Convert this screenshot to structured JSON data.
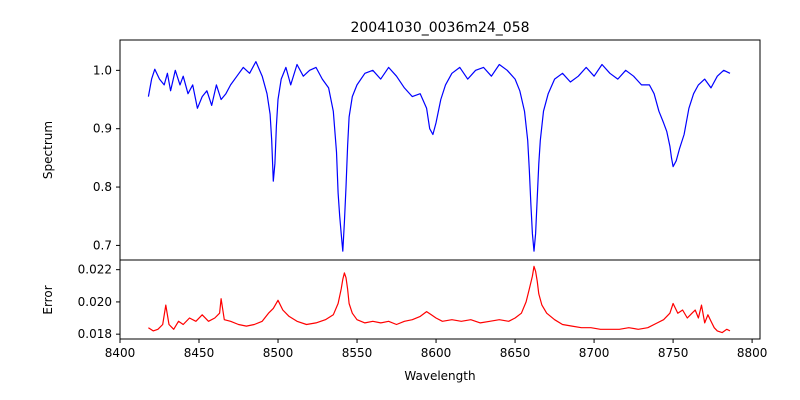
{
  "chart_data": [
    {
      "panel": "top",
      "type": "line",
      "title": "20041030_0036m24_058",
      "xlabel": "",
      "ylabel": "Spectrum",
      "xlim": [
        8400,
        8805
      ],
      "ylim": [
        0.675,
        1.052
      ],
      "xticks": [],
      "yticks": [
        0.7,
        0.8,
        0.9,
        1.0
      ],
      "ytick_labels": [
        "0.7",
        "0.8",
        "0.9",
        "1.0"
      ],
      "color": "#0000ff",
      "series": [
        {
          "x": [
            8418,
            8420,
            8422,
            8425,
            8428,
            8430,
            8432,
            8435,
            8438,
            8440,
            8443,
            8446,
            8449,
            8452,
            8455,
            8458,
            8461,
            8464,
            8467,
            8470,
            8474,
            8478,
            8482,
            8486,
            8490,
            8493,
            8495,
            8496,
            8497,
            8498,
            8499,
            8500,
            8502,
            8505,
            8508,
            8512,
            8516,
            8520,
            8524,
            8528,
            8532,
            8535,
            8537,
            8538,
            8539,
            8540,
            8541,
            8542,
            8543,
            8544,
            8545,
            8547,
            8550,
            8555,
            8560,
            8565,
            8570,
            8575,
            8580,
            8585,
            8590,
            8594,
            8596,
            8598,
            8600,
            8603,
            8606,
            8610,
            8615,
            8620,
            8625,
            8630,
            8635,
            8640,
            8645,
            8650,
            8653,
            8656,
            8658,
            8659,
            8660,
            8661,
            8662,
            8663,
            8664,
            8665,
            8666,
            8668,
            8671,
            8675,
            8680,
            8685,
            8690,
            8695,
            8700,
            8705,
            8710,
            8715,
            8720,
            8725,
            8730,
            8735,
            8738,
            8741,
            8744,
            8746,
            8748,
            8749,
            8750,
            8752,
            8754,
            8757,
            8760,
            8763,
            8766,
            8770,
            8774,
            8778,
            8782,
            8786
          ],
          "y": [
            0.955,
            0.985,
            1.002,
            0.985,
            0.975,
            0.995,
            0.965,
            1.0,
            0.975,
            0.99,
            0.96,
            0.975,
            0.935,
            0.955,
            0.965,
            0.94,
            0.975,
            0.95,
            0.96,
            0.975,
            0.99,
            1.005,
            0.995,
            1.015,
            0.99,
            0.96,
            0.925,
            0.88,
            0.81,
            0.84,
            0.905,
            0.95,
            0.985,
            1.005,
            0.975,
            1.01,
            0.99,
            1.0,
            1.005,
            0.985,
            0.97,
            0.93,
            0.86,
            0.79,
            0.75,
            0.72,
            0.69,
            0.74,
            0.8,
            0.87,
            0.92,
            0.955,
            0.975,
            0.995,
            1.0,
            0.985,
            1.005,
            0.99,
            0.97,
            0.955,
            0.96,
            0.935,
            0.9,
            0.89,
            0.91,
            0.95,
            0.975,
            0.995,
            1.005,
            0.985,
            1.0,
            1.005,
            0.99,
            1.01,
            1.0,
            0.985,
            0.965,
            0.93,
            0.88,
            0.83,
            0.77,
            0.72,
            0.69,
            0.72,
            0.78,
            0.84,
            0.88,
            0.93,
            0.96,
            0.985,
            0.995,
            0.98,
            0.99,
            1.005,
            0.99,
            1.01,
            0.995,
            0.985,
            1.0,
            0.99,
            0.975,
            0.975,
            0.96,
            0.93,
            0.91,
            0.895,
            0.87,
            0.85,
            0.835,
            0.845,
            0.865,
            0.89,
            0.935,
            0.96,
            0.975,
            0.985,
            0.97,
            0.99,
            1.0,
            0.995
          ]
        }
      ]
    },
    {
      "panel": "bottom",
      "type": "line",
      "title": "",
      "xlabel": "Wavelength",
      "ylabel": "Error",
      "xlim": [
        8400,
        8805
      ],
      "ylim": [
        0.0177,
        0.0226
      ],
      "xticks": [
        8400,
        8450,
        8500,
        8550,
        8600,
        8650,
        8700,
        8750,
        8800
      ],
      "xtick_labels": [
        "8400",
        "8450",
        "8500",
        "8550",
        "8600",
        "8650",
        "8700",
        "8750",
        "8800"
      ],
      "yticks": [
        0.018,
        0.02,
        0.022
      ],
      "ytick_labels": [
        "0.018",
        "0.020",
        "0.022"
      ],
      "color": "#ff0000",
      "series": [
        {
          "x": [
            8418,
            8421,
            8424,
            8427,
            8429,
            8431,
            8434,
            8437,
            8440,
            8444,
            8448,
            8452,
            8456,
            8460,
            8463,
            8464,
            8466,
            8470,
            8475,
            8480,
            8485,
            8490,
            8494,
            8497,
            8500,
            8503,
            8507,
            8512,
            8518,
            8524,
            8530,
            8535,
            8538,
            8540,
            8541,
            8542,
            8543,
            8544,
            8545,
            8547,
            8550,
            8555,
            8560,
            8565,
            8570,
            8575,
            8580,
            8585,
            8590,
            8594,
            8597,
            8600,
            8604,
            8610,
            8616,
            8622,
            8628,
            8634,
            8640,
            8646,
            8650,
            8654,
            8657,
            8659,
            8661,
            8662,
            8663,
            8664,
            8665,
            8667,
            8670,
            8675,
            8680,
            8686,
            8692,
            8698,
            8704,
            8710,
            8716,
            8722,
            8728,
            8734,
            8740,
            8744,
            8748,
            8750,
            8753,
            8756,
            8759,
            8762,
            8764,
            8766,
            8768,
            8770,
            8772,
            8774,
            8776,
            8778,
            8781,
            8784,
            8786
          ],
          "y": [
            0.0184,
            0.0182,
            0.0183,
            0.0186,
            0.0198,
            0.0186,
            0.0183,
            0.0188,
            0.0186,
            0.019,
            0.0188,
            0.0192,
            0.0188,
            0.019,
            0.0193,
            0.0202,
            0.0189,
            0.0188,
            0.0186,
            0.0185,
            0.0186,
            0.0188,
            0.0193,
            0.0196,
            0.0201,
            0.0195,
            0.0191,
            0.0188,
            0.0186,
            0.0187,
            0.0189,
            0.0192,
            0.0199,
            0.0208,
            0.0214,
            0.0218,
            0.0215,
            0.0208,
            0.0199,
            0.0193,
            0.0189,
            0.0187,
            0.0188,
            0.0187,
            0.0188,
            0.0186,
            0.0188,
            0.0189,
            0.0191,
            0.0194,
            0.0192,
            0.019,
            0.0188,
            0.0189,
            0.0188,
            0.0189,
            0.0187,
            0.0188,
            0.0189,
            0.0188,
            0.019,
            0.0193,
            0.02,
            0.0208,
            0.0216,
            0.0222,
            0.0219,
            0.0213,
            0.0205,
            0.0198,
            0.0193,
            0.0189,
            0.0186,
            0.0185,
            0.0184,
            0.0184,
            0.0183,
            0.0183,
            0.0183,
            0.0184,
            0.0183,
            0.0184,
            0.0187,
            0.0189,
            0.0193,
            0.0199,
            0.0193,
            0.0195,
            0.019,
            0.0193,
            0.0195,
            0.019,
            0.0198,
            0.0187,
            0.0192,
            0.0188,
            0.0184,
            0.0182,
            0.0181,
            0.0183,
            0.0182
          ]
        }
      ]
    }
  ]
}
